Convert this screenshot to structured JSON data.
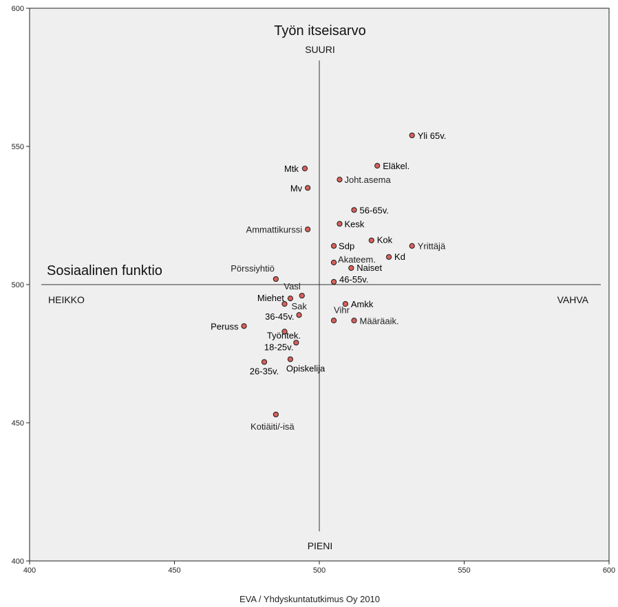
{
  "chart_data": {
    "type": "scatter",
    "xlim": [
      400,
      600
    ],
    "ylim": [
      400,
      600
    ],
    "x_ticks": [
      400,
      450,
      500,
      550,
      600
    ],
    "y_ticks": [
      400,
      450,
      500,
      550,
      600
    ],
    "grid": false,
    "background_color": "#efefef",
    "marker_color": "#d9605b",
    "reference_lines": {
      "x": 500,
      "y": 500
    },
    "title": "Työn itseisarvo",
    "x_axis_name": "Sosiaalinen funktio",
    "y_high_label": "SUURI",
    "y_low_label": "PIENI",
    "x_low_label": "HEIKKO",
    "x_high_label": "VAHVA",
    "source": "EVA / Yhdyskuntatutkimus Oy 2010",
    "points": [
      {
        "label": "Yli 65v.",
        "x": 532,
        "y": 554
      },
      {
        "label": "Eläkel.",
        "x": 520,
        "y": 543
      },
      {
        "label": "Mtk",
        "x": 495,
        "y": 542
      },
      {
        "label": "Joht.asema",
        "x": 507,
        "y": 538
      },
      {
        "label": "Mv",
        "x": 496,
        "y": 535
      },
      {
        "label": "56-65v.",
        "x": 512,
        "y": 527
      },
      {
        "label": "Kesk",
        "x": 507,
        "y": 522
      },
      {
        "label": "Ammattikurssi",
        "x": 496,
        "y": 520
      },
      {
        "label": "Kok",
        "x": 518,
        "y": 516
      },
      {
        "label": "Sdp",
        "x": 505,
        "y": 514
      },
      {
        "label": "Yrittäjä",
        "x": 532,
        "y": 514
      },
      {
        "label": "Kd",
        "x": 524,
        "y": 510
      },
      {
        "label": "Akateem.",
        "x": 505,
        "y": 508
      },
      {
        "label": "Naiset",
        "x": 511,
        "y": 506
      },
      {
        "label": "Pörssiyhtiö",
        "x": 485,
        "y": 502
      },
      {
        "label": "46-55v.",
        "x": 505,
        "y": 501
      },
      {
        "label": "Vasl",
        "x": 494,
        "y": 496
      },
      {
        "label": "Miehet",
        "x": 490,
        "y": 495
      },
      {
        "label": "Sak",
        "x": 488,
        "y": 493
      },
      {
        "label": "Amkk",
        "x": 509,
        "y": 493
      },
      {
        "label": "36-45v.",
        "x": 493,
        "y": 489
      },
      {
        "label": "Vihr",
        "x": 505,
        "y": 487
      },
      {
        "label": "Määräaik.",
        "x": 512,
        "y": 487
      },
      {
        "label": "Peruss",
        "x": 474,
        "y": 485
      },
      {
        "label": "Työntek.",
        "x": 488,
        "y": 483
      },
      {
        "label": "18-25v.",
        "x": 492,
        "y": 479
      },
      {
        "label": "Opiskelija",
        "x": 490,
        "y": 473
      },
      {
        "label": "26-35v.",
        "x": 481,
        "y": 472
      },
      {
        "label": "Kotiäiti/-isä",
        "x": 485,
        "y": 453
      }
    ]
  }
}
